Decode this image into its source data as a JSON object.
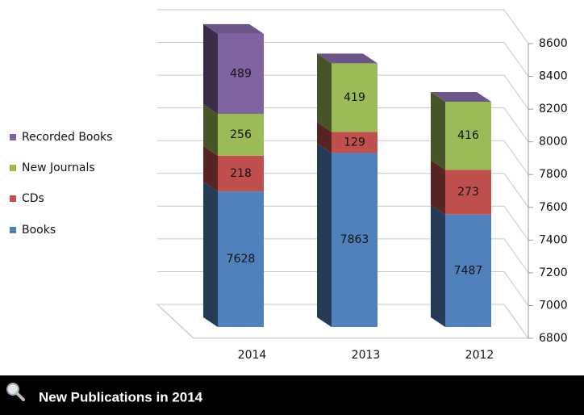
{
  "chart_data": {
    "type": "bar3d_stacked",
    "categories": [
      "2014",
      "2013",
      "2012"
    ],
    "series": [
      {
        "name": "Books",
        "color": "#4f81bd",
        "values": [
          7628,
          7863,
          7487
        ]
      },
      {
        "name": "CDs",
        "color": "#c0504d",
        "values": [
          218,
          129,
          273
        ]
      },
      {
        "name": "New Journals",
        "color": "#9bbb59",
        "values": [
          256,
          419,
          416
        ]
      },
      {
        "name": "Recorded Books",
        "color": "#8064a2",
        "values": [
          489,
          0,
          0
        ]
      }
    ],
    "ylim": [
      6800,
      8600
    ],
    "yticks": [
      6800,
      7000,
      7200,
      7400,
      7600,
      7800,
      8000,
      8200,
      8400,
      8600
    ],
    "grid": true
  },
  "caption": "New Publications in 2014"
}
